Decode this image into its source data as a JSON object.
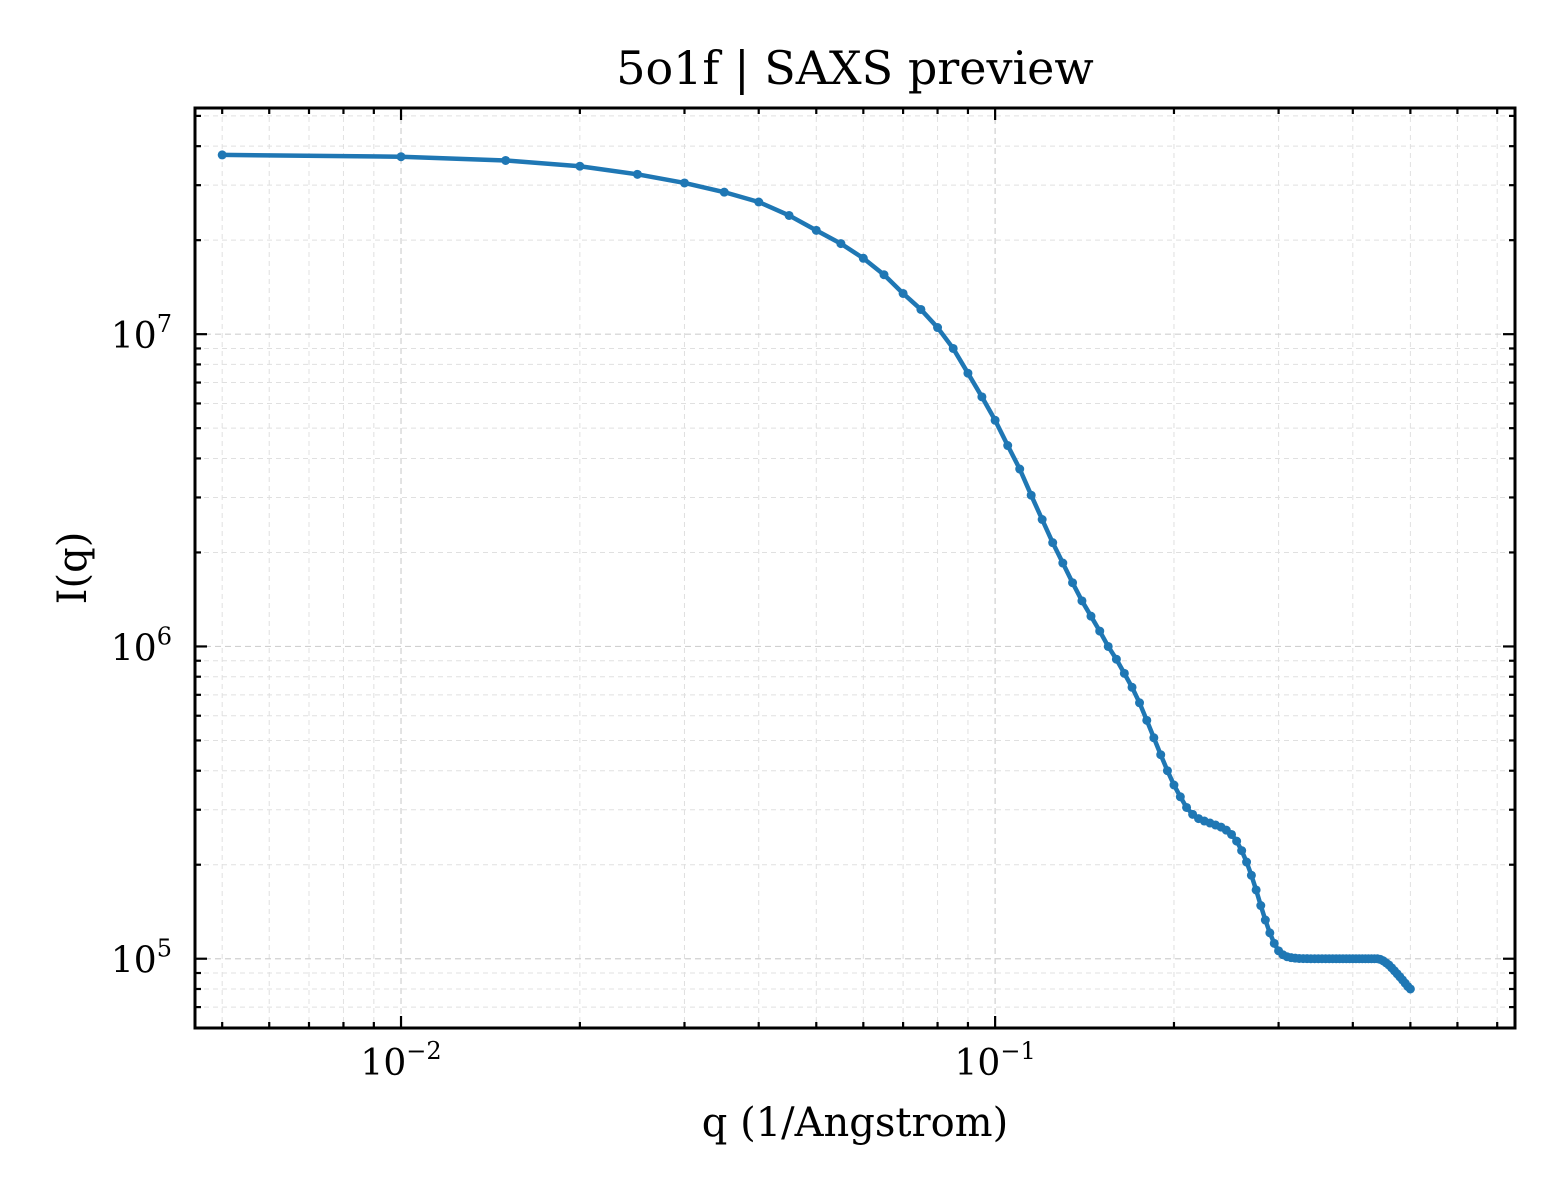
{
  "chart_data": {
    "type": "line",
    "title": "5o1f | SAXS preview",
    "xlabel": "q (1/Angstrom)",
    "ylabel": "I(q)",
    "xscale": "log",
    "yscale": "log",
    "xlim": [
      0.0045,
      0.75
    ],
    "ylim": [
      60000,
      53000000
    ],
    "grid": true,
    "x_ticks": [
      {
        "base": "10",
        "exp": "−2",
        "value": 0.01
      },
      {
        "base": "10",
        "exp": "−1",
        "value": 0.1
      }
    ],
    "y_ticks": [
      {
        "base": "10",
        "exp": "5",
        "value": 100000
      },
      {
        "base": "10",
        "exp": "6",
        "value": 1000000
      },
      {
        "base": "10",
        "exp": "7",
        "value": 10000000
      }
    ],
    "series": [
      {
        "color": "#1f77b4",
        "marker": "dot",
        "x": [
          0.005,
          0.01,
          0.015,
          0.02,
          0.025,
          0.03,
          0.035,
          0.04,
          0.045,
          0.05,
          0.055,
          0.06,
          0.065,
          0.07,
          0.075,
          0.08,
          0.085,
          0.09,
          0.095,
          0.1,
          0.105,
          0.11,
          0.115,
          0.12,
          0.125,
          0.13,
          0.135,
          0.14,
          0.145,
          0.15,
          0.155,
          0.16,
          0.165,
          0.17,
          0.175,
          0.18,
          0.185,
          0.19,
          0.195,
          0.2,
          0.205,
          0.21,
          0.215,
          0.22,
          0.225,
          0.23,
          0.235,
          0.24,
          0.245,
          0.25,
          0.255,
          0.26,
          0.265,
          0.27,
          0.275,
          0.28,
          0.285,
          0.29,
          0.295,
          0.3,
          0.305,
          0.31,
          0.315,
          0.32,
          0.325,
          0.33,
          0.335,
          0.34,
          0.345,
          0.35,
          0.355,
          0.36,
          0.365,
          0.37,
          0.375,
          0.38,
          0.385,
          0.39,
          0.395,
          0.4,
          0.405,
          0.41,
          0.415,
          0.42,
          0.425,
          0.43,
          0.435,
          0.44,
          0.445,
          0.45,
          0.455,
          0.46,
          0.465,
          0.47,
          0.475,
          0.48,
          0.485,
          0.49,
          0.495,
          0.5
        ],
        "y": [
          37500000,
          37000000,
          36000000,
          34500000,
          32500000,
          30500000,
          28500000,
          26500000,
          24000000,
          21500000,
          19500000,
          17500000,
          15500000,
          13500000,
          12000000,
          10500000,
          9000000,
          7500000,
          6300000,
          5300000,
          4400000,
          3700000,
          3050000,
          2550000,
          2150000,
          1850000,
          1600000,
          1400000,
          1250000,
          1120000,
          1000000,
          910000,
          820000,
          740000,
          660000,
          580000,
          510000,
          450000,
          400000,
          360000,
          330000,
          305000,
          290000,
          281000,
          276000,
          272000,
          268000,
          264000,
          258000,
          250000,
          238000,
          222000,
          204000,
          185000,
          166000,
          148000,
          133000,
          121000,
          112000,
          106000,
          103000,
          101500,
          100800,
          100400,
          100200,
          100100,
          100050,
          100000,
          100000,
          100000,
          100000,
          100000,
          100000,
          100000,
          100000,
          100000,
          100000,
          100000,
          100000,
          100000,
          100000,
          100000,
          100000,
          100000,
          100000,
          100000,
          100000,
          100000,
          99500,
          98500,
          97000,
          95500,
          93500,
          91500,
          89500,
          87500,
          85500,
          83500,
          81500,
          80000
        ]
      }
    ]
  }
}
